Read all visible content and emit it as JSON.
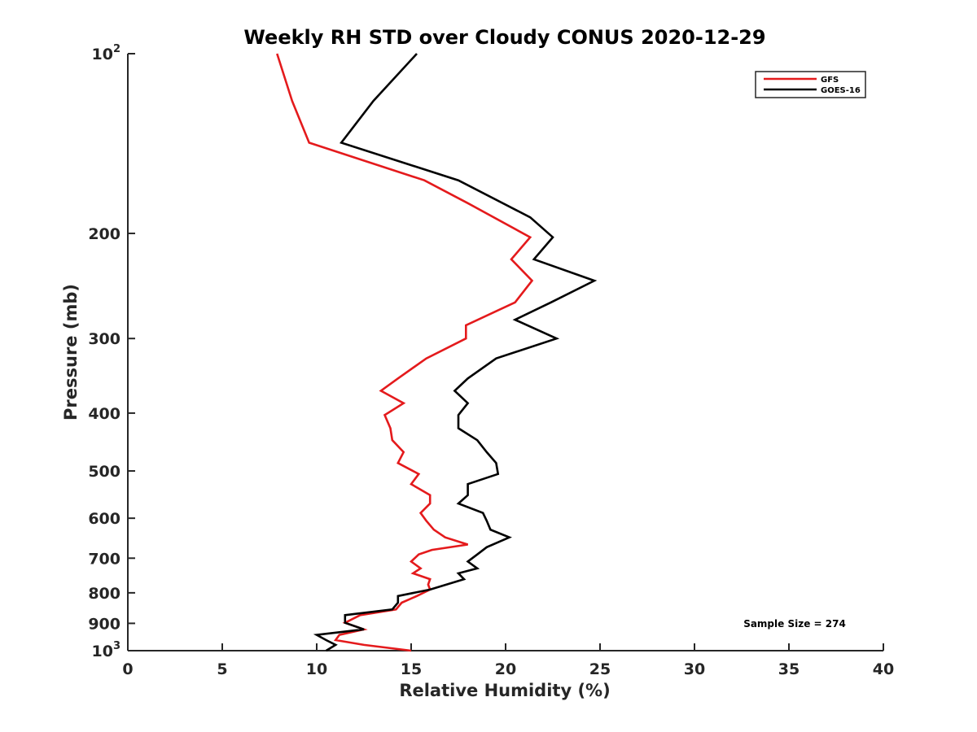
{
  "chart_data": {
    "type": "line",
    "title": "Weekly RH STD over Cloudy CONUS 2020-12-29",
    "xlabel": "Relative Humidity (%)",
    "ylabel": "Pressure (mb)",
    "xlim": [
      0,
      40
    ],
    "ylim": [
      100,
      1000
    ],
    "y_scale": "log",
    "y_reversed": true,
    "x_ticks": [
      0,
      5,
      10,
      15,
      20,
      25,
      30,
      35,
      40
    ],
    "y_ticks": [
      {
        "value": 100,
        "base": "10",
        "exp": "2"
      },
      {
        "value": 200,
        "label": "200"
      },
      {
        "value": 300,
        "label": "300"
      },
      {
        "value": 400,
        "label": "400"
      },
      {
        "value": 500,
        "label": "500"
      },
      {
        "value": 600,
        "label": "600"
      },
      {
        "value": 700,
        "label": "700"
      },
      {
        "value": 800,
        "label": "800"
      },
      {
        "value": 900,
        "label": "900"
      },
      {
        "value": 1000,
        "base": "10",
        "exp": "3"
      }
    ],
    "grid": false,
    "legend_position": "top-right",
    "annotation": "Sample Size = 274",
    "series": [
      {
        "name": "GFS",
        "color": "#e41a1c",
        "points": [
          [
            7.9,
            100
          ],
          [
            8.7,
            120
          ],
          [
            9.6,
            141
          ],
          [
            15.7,
            163
          ],
          [
            18.0,
            178
          ],
          [
            21.3,
            203
          ],
          [
            20.3,
            221
          ],
          [
            21.4,
            240
          ],
          [
            20.5,
            261
          ],
          [
            17.9,
            285
          ],
          [
            17.9,
            300
          ],
          [
            15.8,
            324
          ],
          [
            14.3,
            350
          ],
          [
            13.4,
            367
          ],
          [
            14.6,
            385
          ],
          [
            13.6,
            403
          ],
          [
            13.9,
            424
          ],
          [
            14.0,
            444
          ],
          [
            14.6,
            465
          ],
          [
            14.3,
            485
          ],
          [
            15.4,
            506
          ],
          [
            15.0,
            526
          ],
          [
            16.0,
            549
          ],
          [
            16.0,
            567
          ],
          [
            15.5,
            588
          ],
          [
            15.8,
            606
          ],
          [
            16.2,
            627
          ],
          [
            16.8,
            646
          ],
          [
            18.0,
            664
          ],
          [
            16.1,
            678
          ],
          [
            15.4,
            690
          ],
          [
            15.0,
            709
          ],
          [
            15.5,
            728
          ],
          [
            15.1,
            742
          ],
          [
            16.0,
            759
          ],
          [
            15.9,
            775
          ],
          [
            16.0,
            790
          ],
          [
            15.3,
            810
          ],
          [
            14.5,
            831
          ],
          [
            14.2,
            853
          ],
          [
            12.3,
            872
          ],
          [
            11.5,
            898
          ],
          [
            12.5,
            921
          ],
          [
            11.2,
            941
          ],
          [
            11.0,
            960
          ],
          [
            12.5,
            978
          ],
          [
            15.0,
            1000
          ]
        ]
      },
      {
        "name": "GOES-16",
        "color": "#000000",
        "points": [
          [
            15.3,
            100
          ],
          [
            13.0,
            120
          ],
          [
            11.3,
            141
          ],
          [
            17.5,
            163
          ],
          [
            21.3,
            188
          ],
          [
            22.5,
            203
          ],
          [
            21.5,
            221
          ],
          [
            24.7,
            240
          ],
          [
            22.4,
            261
          ],
          [
            20.5,
            279
          ],
          [
            22.7,
            300
          ],
          [
            19.5,
            324
          ],
          [
            18.0,
            350
          ],
          [
            17.3,
            367
          ],
          [
            18.0,
            385
          ],
          [
            17.5,
            403
          ],
          [
            17.5,
            424
          ],
          [
            18.5,
            444
          ],
          [
            19.0,
            465
          ],
          [
            19.5,
            485
          ],
          [
            19.6,
            506
          ],
          [
            18.0,
            526
          ],
          [
            18.0,
            549
          ],
          [
            17.5,
            567
          ],
          [
            18.8,
            588
          ],
          [
            19.0,
            606
          ],
          [
            19.2,
            627
          ],
          [
            20.2,
            646
          ],
          [
            19.0,
            671
          ],
          [
            18.5,
            690
          ],
          [
            18.0,
            709
          ],
          [
            18.5,
            728
          ],
          [
            17.5,
            742
          ],
          [
            17.8,
            759
          ],
          [
            16.0,
            790
          ],
          [
            14.3,
            810
          ],
          [
            14.3,
            831
          ],
          [
            14.0,
            853
          ],
          [
            11.5,
            872
          ],
          [
            11.5,
            898
          ],
          [
            12.5,
            921
          ],
          [
            10.0,
            941
          ],
          [
            10.5,
            960
          ],
          [
            11.0,
            978
          ],
          [
            10.5,
            1000
          ]
        ]
      }
    ]
  }
}
